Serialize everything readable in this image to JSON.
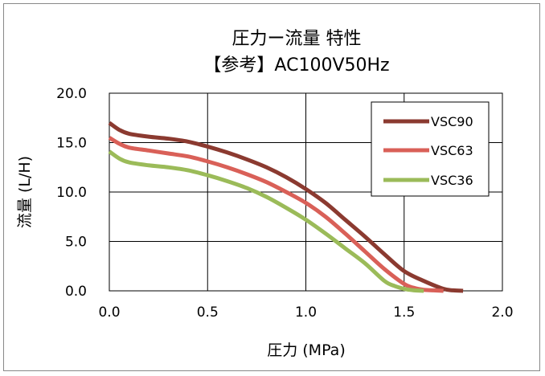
{
  "chart_data": {
    "type": "line",
    "title_line1": "圧力ー流量 特性",
    "title_line2": "【参考】AC100V50Hz",
    "xlabel": "圧力 (MPa)",
    "ylabel": "流量 (L/H)",
    "xlim": [
      0.0,
      2.0
    ],
    "ylim": [
      0.0,
      20.0
    ],
    "x_ticks": [
      "0.0",
      "0.5",
      "1.0",
      "1.5",
      "2.0"
    ],
    "y_ticks": [
      "20.0",
      "15.0",
      "10.0",
      "5.0",
      "0.0"
    ],
    "grid": true,
    "legend_position": "top-right",
    "series": [
      {
        "name": "VSC90",
        "color": "#8b3a30",
        "x": [
          0.0,
          0.05,
          0.1,
          0.2,
          0.3,
          0.4,
          0.5,
          0.6,
          0.7,
          0.8,
          0.9,
          1.0,
          1.1,
          1.2,
          1.3,
          1.4,
          1.5,
          1.6,
          1.7,
          1.75,
          1.8
        ],
        "y": [
          17.0,
          16.3,
          15.9,
          15.6,
          15.4,
          15.1,
          14.6,
          14.0,
          13.3,
          12.5,
          11.5,
          10.3,
          8.9,
          7.2,
          5.5,
          3.7,
          2.0,
          1.0,
          0.2,
          0.05,
          0.0
        ]
      },
      {
        "name": "VSC63",
        "color": "#d96058",
        "x": [
          0.0,
          0.05,
          0.1,
          0.2,
          0.3,
          0.4,
          0.5,
          0.6,
          0.7,
          0.8,
          0.9,
          1.0,
          1.1,
          1.2,
          1.3,
          1.4,
          1.5,
          1.55,
          1.6,
          1.65,
          1.7
        ],
        "y": [
          15.5,
          14.9,
          14.5,
          14.2,
          13.9,
          13.6,
          13.1,
          12.5,
          11.8,
          11.0,
          10.0,
          8.9,
          7.5,
          5.8,
          4.0,
          2.2,
          0.7,
          0.3,
          0.1,
          0.05,
          0.0
        ]
      },
      {
        "name": "VSC36",
        "color": "#9bbb59",
        "x": [
          0.0,
          0.05,
          0.1,
          0.2,
          0.3,
          0.4,
          0.5,
          0.6,
          0.7,
          0.8,
          0.9,
          1.0,
          1.1,
          1.2,
          1.3,
          1.4,
          1.45,
          1.5,
          1.55,
          1.6
        ],
        "y": [
          14.1,
          13.4,
          13.0,
          12.7,
          12.5,
          12.2,
          11.7,
          11.1,
          10.4,
          9.5,
          8.4,
          7.2,
          5.8,
          4.3,
          2.8,
          1.0,
          0.5,
          0.2,
          0.05,
          0.0
        ]
      }
    ]
  }
}
